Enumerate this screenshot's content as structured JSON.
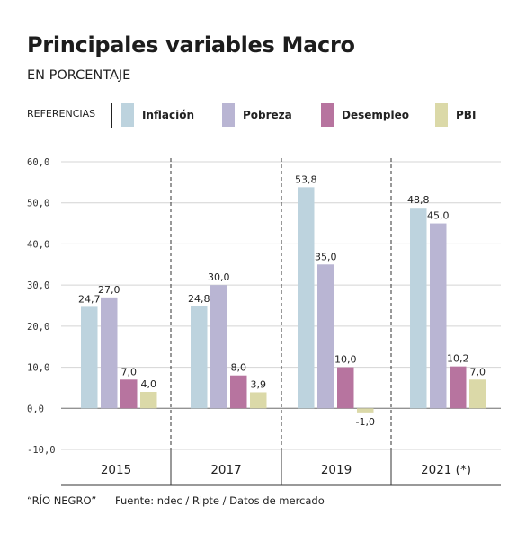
{
  "title": "Principales variables Macro",
  "subtitle": "EN PORCENTAJE",
  "legend_title": "REFERENCIAS",
  "footer": {
    "credit": "“RÍO NEGRO”",
    "source": "Fuente: ndec / Ripte / Datos de mercado"
  },
  "chart_data": {
    "type": "bar",
    "title": "Principales variables Macro",
    "subtitle": "EN PORCENTAJE",
    "categories": [
      "2015",
      "2017",
      "2019",
      "2021 (*)"
    ],
    "series": [
      {
        "name": "Inflación",
        "color": "#bdd3de",
        "values": [
          24.7,
          24.8,
          53.8,
          48.8
        ],
        "labels": [
          "24,7",
          "24,8",
          "53,8",
          "48,8"
        ]
      },
      {
        "name": "Pobreza",
        "color": "#b9b5d3",
        "values": [
          27.0,
          30.0,
          35.0,
          45.0
        ],
        "labels": [
          "27,0",
          "30,0",
          "35,0",
          "45,0"
        ]
      },
      {
        "name": "Desempleo",
        "color": "#b7749f",
        "values": [
          7.0,
          8.0,
          10.0,
          10.2
        ],
        "labels": [
          "7,0",
          "8,0",
          "10,0",
          "10,2"
        ]
      },
      {
        "name": "PBI",
        "color": "#dbd9a8",
        "values": [
          4.0,
          3.9,
          -1.0,
          7.0
        ],
        "labels": [
          "4,0",
          "3,9",
          "-1,0",
          "7,0"
        ]
      }
    ],
    "ylim": [
      -10,
      60
    ],
    "yticks": [
      -10,
      0,
      10,
      20,
      30,
      40,
      50,
      60
    ],
    "ytick_labels": [
      "-10,0",
      "0,0",
      "10,0",
      "20,0",
      "30,0",
      "40,0",
      "50,0",
      "60,0"
    ],
    "grid": true,
    "legend_position": "top"
  }
}
